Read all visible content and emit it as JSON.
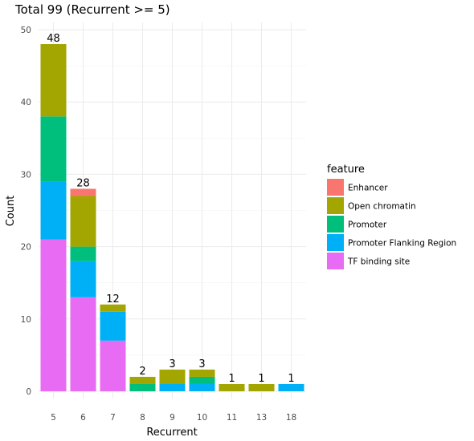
{
  "chart_data": {
    "type": "bar",
    "stacked": true,
    "title": "Total  99  (Recurrent >= 5)",
    "xlabel": "Recurrent",
    "ylabel": "Count",
    "ylim": [
      0,
      50
    ],
    "yticks": [
      0,
      10,
      20,
      30,
      40,
      50
    ],
    "grid": true,
    "categories": [
      "5",
      "6",
      "7",
      "8",
      "9",
      "10",
      "11",
      "13",
      "18"
    ],
    "totals": [
      48,
      28,
      12,
      2,
      3,
      3,
      1,
      1,
      1
    ],
    "stack_order_bottom_to_top": [
      "TF binding site",
      "Promoter Flanking Region",
      "Promoter",
      "Open chromatin",
      "Enhancer"
    ],
    "series": [
      {
        "name": "Enhancer",
        "color": "#F8766D",
        "values": [
          0,
          1,
          0,
          0,
          0,
          0,
          0,
          0,
          0
        ]
      },
      {
        "name": "Open chromatin",
        "color": "#A3A500",
        "values": [
          10,
          7,
          1,
          1,
          2,
          1,
          1,
          1,
          0
        ]
      },
      {
        "name": "Promoter",
        "color": "#00BF7D",
        "values": [
          9,
          2,
          0,
          1,
          0,
          1,
          0,
          0,
          0
        ]
      },
      {
        "name": "Promoter Flanking Region",
        "color": "#00B0F6",
        "values": [
          8,
          5,
          4,
          0,
          1,
          1,
          0,
          0,
          1
        ]
      },
      {
        "name": "TF binding site",
        "color": "#E76BF3",
        "values": [
          21,
          13,
          7,
          0,
          0,
          0,
          0,
          0,
          0
        ]
      }
    ],
    "legend": {
      "title": "feature",
      "position": "right",
      "items": [
        "Enhancer",
        "Open chromatin",
        "Promoter",
        "Promoter Flanking Region",
        "TF binding site"
      ]
    }
  }
}
